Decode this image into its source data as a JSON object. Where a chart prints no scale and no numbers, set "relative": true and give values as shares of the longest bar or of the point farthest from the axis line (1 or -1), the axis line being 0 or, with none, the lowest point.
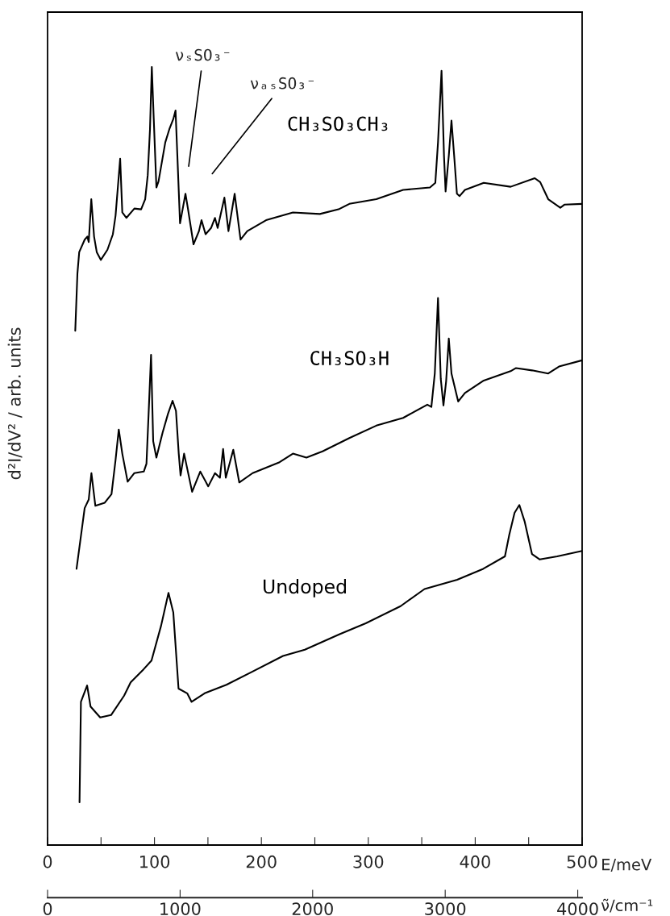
{
  "chart_data": {
    "type": "line",
    "relative": true,
    "ylabel": "d²I/dV² / arb. units",
    "xlabel": "E/meV",
    "x2label": "ν̃/cm⁻¹",
    "xlim": [
      0,
      500
    ],
    "xticks": [
      0,
      {
        "value": 50,
        "label": null
      },
      100,
      {
        "value": 150,
        "label": null
      },
      200,
      {
        "value": 250,
        "label": null
      },
      300,
      {
        "value": 350,
        "label": null
      },
      400,
      {
        "value": 450,
        "label": null
      },
      500
    ],
    "x2lim": [
      0,
      4033
    ],
    "x2ticks": [
      0,
      1000,
      2000,
      3000,
      4000
    ],
    "marker": "none",
    "line_style": "solid",
    "annotations": [
      "νₛSO₃⁻",
      "νₐₛSO₃⁻"
    ],
    "series": [
      {
        "name": "CH₃SO₃CH₃",
        "color": "#000000",
        "x": [
          25.9,
          27.9,
          29.6,
          34.7,
          37.2,
          38.5,
          40.9,
          43.5,
          46.0,
          49.8,
          56.0,
          61.1,
          63.6,
          67.9,
          69.9,
          73.7,
          81.2,
          87.5,
          91.3,
          93.7,
          95.8,
          97.5,
          99.3,
          101.8,
          103.8,
          110.1,
          113.9,
          117.6,
          119.7,
          121.4,
          123.9,
          129.0,
          131.4,
          136.5,
          141.6,
          144.0,
          147.8,
          152.9,
          156.6,
          159.1,
          165.4,
          169.2,
          175.0,
          180.5,
          186.8,
          204.4,
          229.5,
          254.7,
          272.2,
          282.3,
          307.5,
          332.6,
          357.7,
          362.7,
          365.2,
          368.5,
          370.8,
          372.3,
          375.3,
          377.8,
          380.3,
          382.9,
          385.4,
          390.4,
          408.0,
          433.1,
          455.7,
          460.8,
          468.3,
          479.6,
          483.4,
          500.0
        ],
        "values": [
          0.661,
          0.734,
          0.762,
          0.778,
          0.782,
          0.775,
          0.83,
          0.782,
          0.762,
          0.752,
          0.765,
          0.785,
          0.809,
          0.882,
          0.813,
          0.806,
          0.818,
          0.817,
          0.83,
          0.861,
          0.92,
          1.0,
          0.934,
          0.845,
          0.853,
          0.903,
          0.92,
          0.933,
          0.944,
          0.886,
          0.799,
          0.837,
          0.817,
          0.772,
          0.789,
          0.803,
          0.785,
          0.793,
          0.806,
          0.793,
          0.832,
          0.789,
          0.837,
          0.778,
          0.789,
          0.803,
          0.813,
          0.811,
          0.817,
          0.824,
          0.83,
          0.842,
          0.845,
          0.851,
          0.903,
          0.995,
          0.886,
          0.84,
          0.886,
          0.931,
          0.886,
          0.837,
          0.834,
          0.842,
          0.851,
          0.846,
          0.857,
          0.852,
          0.83,
          0.819,
          0.823,
          0.824
        ]
      },
      {
        "name": "CH₃SO₃H",
        "color": "#000000",
        "x": [
          27.1,
          34.7,
          38.5,
          41.0,
          44.7,
          53.5,
          59.8,
          63.6,
          66.6,
          69.9,
          74.9,
          81.2,
          90.0,
          92.5,
          94.5,
          96.8,
          98.8,
          101.8,
          107.6,
          112.6,
          116.9,
          120.1,
          122.7,
          124.4,
          127.7,
          135.2,
          142.8,
          150.3,
          156.6,
          161.2,
          164.2,
          166.7,
          173.7,
          179.3,
          191.8,
          217.0,
          229.5,
          242.1,
          257.2,
          282.3,
          307.5,
          332.6,
          355.2,
          359.0,
          362.2,
          365.2,
          367.8,
          370.3,
          372.8,
          375.3,
          377.8,
          384.1,
          390.4,
          408.0,
          433.1,
          438.2,
          453.2,
          468.3,
          478.4,
          500.0
        ],
        "values": [
          0.355,
          0.433,
          0.444,
          0.478,
          0.436,
          0.44,
          0.451,
          0.495,
          0.534,
          0.503,
          0.467,
          0.478,
          0.48,
          0.49,
          0.554,
          0.63,
          0.519,
          0.498,
          0.53,
          0.554,
          0.571,
          0.558,
          0.503,
          0.475,
          0.503,
          0.454,
          0.48,
          0.461,
          0.478,
          0.472,
          0.509,
          0.472,
          0.508,
          0.466,
          0.478,
          0.492,
          0.503,
          0.498,
          0.506,
          0.523,
          0.539,
          0.549,
          0.566,
          0.563,
          0.606,
          0.703,
          0.599,
          0.565,
          0.596,
          0.651,
          0.606,
          0.57,
          0.581,
          0.597,
          0.609,
          0.613,
          0.61,
          0.606,
          0.615,
          0.623
        ]
      },
      {
        "name": "Undoped",
        "color": "#000000",
        "x": [
          29.9,
          31.2,
          37.0,
          40.2,
          49.2,
          59.4,
          71.6,
          77.7,
          89.9,
          97.2,
          106.2,
          113.1,
          117.6,
          122.5,
          130.6,
          134.7,
          146.9,
          167.3,
          191.7,
          220.2,
          240.6,
          273.2,
          297.6,
          330.2,
          352.6,
          383.1,
          407.5,
          427.8,
          431.9,
          436.8,
          441.3,
          446.2,
          453.1,
          460.4,
          476.7,
          500.0
        ],
        "values": [
          0.055,
          0.184,
          0.205,
          0.178,
          0.164,
          0.167,
          0.192,
          0.209,
          0.226,
          0.237,
          0.282,
          0.324,
          0.299,
          0.201,
          0.195,
          0.184,
          0.195,
          0.206,
          0.223,
          0.243,
          0.251,
          0.271,
          0.285,
          0.307,
          0.329,
          0.341,
          0.355,
          0.371,
          0.399,
          0.427,
          0.437,
          0.416,
          0.374,
          0.367,
          0.371,
          0.378
        ]
      }
    ]
  }
}
